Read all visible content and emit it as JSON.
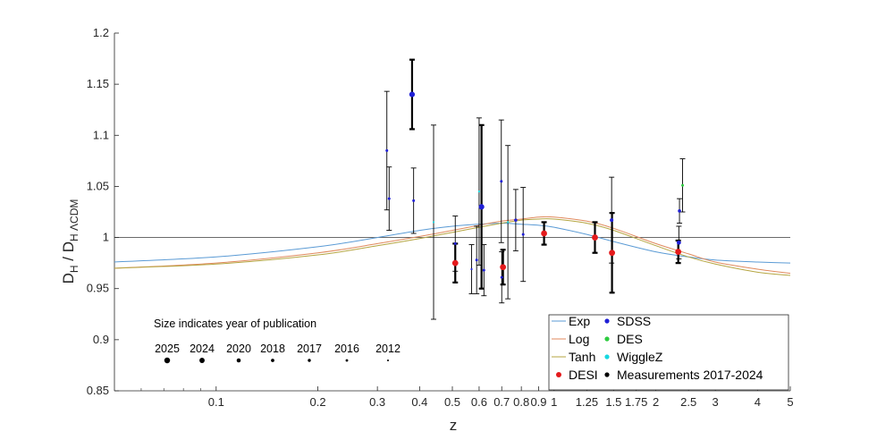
{
  "chart_data": {
    "type": "scatter",
    "xscale": "log",
    "xlim": [
      0.05,
      5
    ],
    "ylim": [
      0.85,
      1.2
    ],
    "xlabel": "z",
    "ylabel": {
      "base": "D",
      "sub_num": "H",
      "sep": " / ",
      "sub_den": "H ΛCDM"
    },
    "xticks": [
      "0.1",
      "0.2",
      "0.3",
      "0.4",
      "0.5",
      "0.6",
      "0.7",
      "0.8",
      "0.9",
      "1",
      "1.25",
      "1.5",
      "1.75",
      "2",
      "2.5",
      "3",
      "4",
      "5"
    ],
    "yticks": [
      "0.85",
      "0.9",
      "0.95",
      "1",
      "1.05",
      "1.1",
      "1.15",
      "1.2"
    ],
    "reference_line": 1.0,
    "curves": [
      {
        "name": "Exp",
        "color": "#5b9bd5",
        "x": [
          0.05,
          0.1,
          0.2,
          0.3,
          0.4,
          0.5,
          0.6,
          0.7,
          0.8,
          0.9,
          1.0,
          1.25,
          1.5,
          2.0,
          2.5,
          3.0,
          4.0,
          5.0
        ],
        "y": [
          0.976,
          0.981,
          0.991,
          1.0,
          1.007,
          1.011,
          1.013,
          1.014,
          1.013,
          1.012,
          1.01,
          1.003,
          0.996,
          0.986,
          0.981,
          0.978,
          0.976,
          0.975
        ]
      },
      {
        "name": "Log",
        "color": "#e08a5e",
        "x": [
          0.05,
          0.1,
          0.2,
          0.3,
          0.4,
          0.5,
          0.6,
          0.7,
          0.8,
          0.9,
          1.0,
          1.25,
          1.5,
          2.0,
          2.5,
          3.0,
          4.0,
          5.0
        ],
        "y": [
          0.97,
          0.975,
          0.985,
          0.994,
          1.001,
          1.007,
          1.012,
          1.016,
          1.018,
          1.02,
          1.02,
          1.016,
          1.009,
          0.994,
          0.984,
          0.976,
          0.969,
          0.965
        ]
      },
      {
        "name": "Tanh",
        "color": "#b5a642",
        "x": [
          0.05,
          0.1,
          0.2,
          0.3,
          0.4,
          0.5,
          0.6,
          0.7,
          0.8,
          0.9,
          1.0,
          1.25,
          1.5,
          2.0,
          2.5,
          3.0,
          4.0,
          5.0
        ],
        "y": [
          0.97,
          0.974,
          0.983,
          0.992,
          0.999,
          1.005,
          1.01,
          1.014,
          1.017,
          1.018,
          1.018,
          1.014,
          1.007,
          0.992,
          0.981,
          0.974,
          0.966,
          0.963
        ]
      }
    ],
    "series": [
      {
        "name": "DESI",
        "color": "#e41a1c",
        "points": [
          {
            "z": 0.51,
            "y": 0.975,
            "err": 0.019,
            "year": 2025
          },
          {
            "z": 0.706,
            "y": 0.971,
            "err": 0.017,
            "year": 2025
          },
          {
            "z": 0.934,
            "y": 1.004,
            "err": 0.011,
            "year": 2025
          },
          {
            "z": 1.321,
            "y": 1.0,
            "err": 0.015,
            "year": 2025
          },
          {
            "z": 1.484,
            "y": 0.985,
            "err": 0.039,
            "year": 2025
          },
          {
            "z": 2.33,
            "y": 0.986,
            "err": 0.011,
            "year": 2025
          }
        ]
      },
      {
        "name": "SDSS",
        "color": "#1f1fd6",
        "points": [
          {
            "z": 0.32,
            "y": 1.085,
            "err": 0.058,
            "year": 2016
          },
          {
            "z": 0.325,
            "y": 1.038,
            "err": 0.031,
            "year": 2016
          },
          {
            "z": 0.38,
            "y": 1.14,
            "err": 0.034,
            "year": 2024
          },
          {
            "z": 0.384,
            "y": 1.036,
            "err": 0.032,
            "year": 2016
          },
          {
            "z": 0.51,
            "y": 0.994,
            "err": 0.027,
            "year": 2016
          },
          {
            "z": 0.57,
            "y": 0.969,
            "err": 0.024,
            "year": 2012
          },
          {
            "z": 0.59,
            "y": 0.978,
            "err": 0.033,
            "year": 2016
          },
          {
            "z": 0.61,
            "y": 1.03,
            "err": 0.08,
            "year": 2024
          },
          {
            "z": 0.62,
            "y": 0.968,
            "err": 0.025,
            "year": 2016
          },
          {
            "z": 0.698,
            "y": 1.055,
            "err": 0.06,
            "year": 2016
          },
          {
            "z": 0.7,
            "y": 0.961,
            "err": 0.025,
            "year": 2016
          },
          {
            "z": 0.77,
            "y": 1.017,
            "err": 0.03,
            "year": 2017
          },
          {
            "z": 0.81,
            "y": 1.003,
            "err": 0.046,
            "year": 2016
          },
          {
            "z": 1.48,
            "y": 1.017,
            "err": 0.042,
            "year": 2018
          },
          {
            "z": 2.34,
            "y": 0.995,
            "err": 0.016,
            "year": 2020
          },
          {
            "z": 2.35,
            "y": 1.026,
            "err": 0.012,
            "year": 2017
          }
        ]
      },
      {
        "name": "DES",
        "color": "#2ecc40",
        "points": [
          {
            "z": 2.4,
            "y": 1.051,
            "err": 0.026,
            "year": 2016
          }
        ]
      },
      {
        "name": "WiggleZ",
        "color": "#17d8e0",
        "points": [
          {
            "z": 0.44,
            "y": 1.015,
            "err": 0.095,
            "year": 2012
          },
          {
            "z": 0.6,
            "y": 1.045,
            "err": 0.072,
            "year": 2012
          },
          {
            "z": 0.73,
            "y": 1.015,
            "err": 0.075,
            "year": 2012
          }
        ]
      },
      {
        "name": "Measurements 2017-2024",
        "color": "#000000",
        "points": []
      }
    ],
    "size_legend": {
      "title": "Size indicates year of publication",
      "years": [
        "2025",
        "2024",
        "2020",
        "2018",
        "2017",
        "2016",
        "2012"
      ]
    },
    "legend": {
      "placement": "bottom-right",
      "entries": [
        "Exp",
        "Log",
        "Tanh",
        "DESI",
        "SDSS",
        "DES",
        "WiggleZ",
        "Measurements 2017-2024"
      ]
    }
  }
}
